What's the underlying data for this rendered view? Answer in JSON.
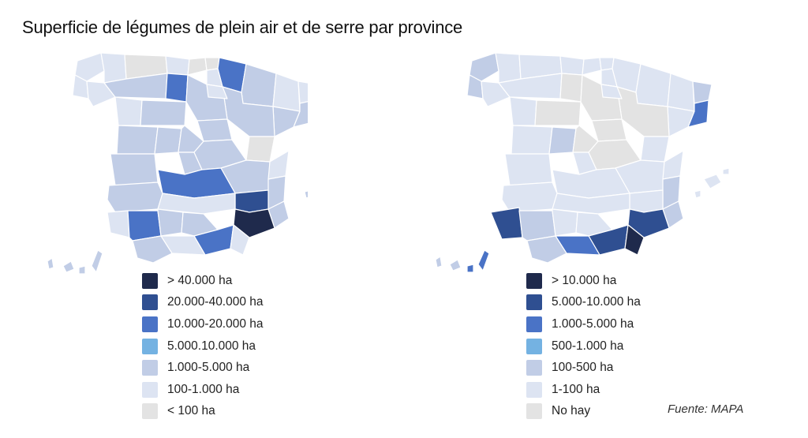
{
  "title": "Superficie de légumes de plein air et de serre par province",
  "source": "Fuente: MAPA",
  "colors": {
    "c_gt40000": "#1f2a4c",
    "c_20000_40000": "#2f4f91",
    "c_10000_20000": "#4a73c6",
    "c_5000_10000": "#74b2e2",
    "c_1000_5000": "#c1cde6",
    "c_100_1000": "#dde4f2",
    "c_lt100": "#e3e3e3"
  },
  "left_map": {
    "name": "superficie-plein-air",
    "legend": [
      {
        "label": "> 40.000 ha",
        "color": "#1f2a4c"
      },
      {
        "label": "20.000-40.000 ha",
        "color": "#2f4f91"
      },
      {
        "label": "10.000-20.000 ha",
        "color": "#4a73c6"
      },
      {
        "label": "5.000.10.000 ha",
        "color": "#74b2e2"
      },
      {
        "label": "1.000-5.000 ha",
        "color": "#c1cde6"
      },
      {
        "label": "100-1.000 ha",
        "color": "#dde4f2"
      },
      {
        "label": "< 100 ha",
        "color": "#e3e3e3"
      }
    ]
  },
  "right_map": {
    "name": "superficie-serre",
    "legend": [
      {
        "label": "> 10.000 ha",
        "color": "#1f2a4c"
      },
      {
        "label": "5.000-10.000 ha",
        "color": "#2f4f91"
      },
      {
        "label": "1.000-5.000 ha",
        "color": "#4a73c6"
      },
      {
        "label": "500-1.000 ha",
        "color": "#74b2e2"
      },
      {
        "label": "100-500 ha",
        "color": "#c1cde6"
      },
      {
        "label": "1-100 ha",
        "color": "#dde4f2"
      },
      {
        "label": "No hay",
        "color": "#e3e3e3"
      }
    ]
  }
}
